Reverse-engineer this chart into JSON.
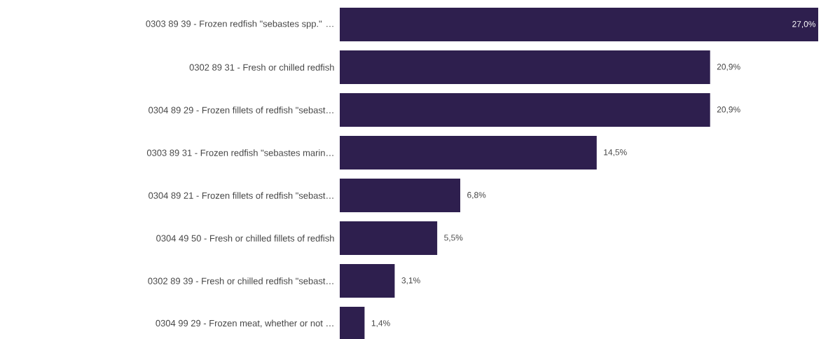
{
  "chart_data": {
    "type": "bar",
    "orientation": "horizontal",
    "categories": [
      "0303 89 39 - Frozen redfish \"sebastes spp.\" …",
      "0302 89 31 - Fresh or chilled redfish",
      "0304 89 29 - Frozen fillets of redfish \"sebast…",
      "0303 89 31 - Frozen redfish \"sebastes marin…",
      "0304 89 21 - Frozen fillets of redfish \"sebast…",
      "0304 49 50 - Fresh or chilled fillets of redfish",
      "0302 89 39 - Fresh or chilled redfish \"sebast…",
      "0304 99 29 - Frozen meat, whether or not …"
    ],
    "values": [
      27.0,
      20.9,
      20.9,
      14.5,
      6.8,
      5.5,
      3.1,
      1.4
    ],
    "value_labels": [
      "27,0%",
      "20,9%",
      "20,9%",
      "14,5%",
      "6,8%",
      "5,5%",
      "3,1%",
      "1,4%"
    ],
    "color": "#2e1f4e",
    "xlim": [
      0,
      27.0
    ]
  }
}
